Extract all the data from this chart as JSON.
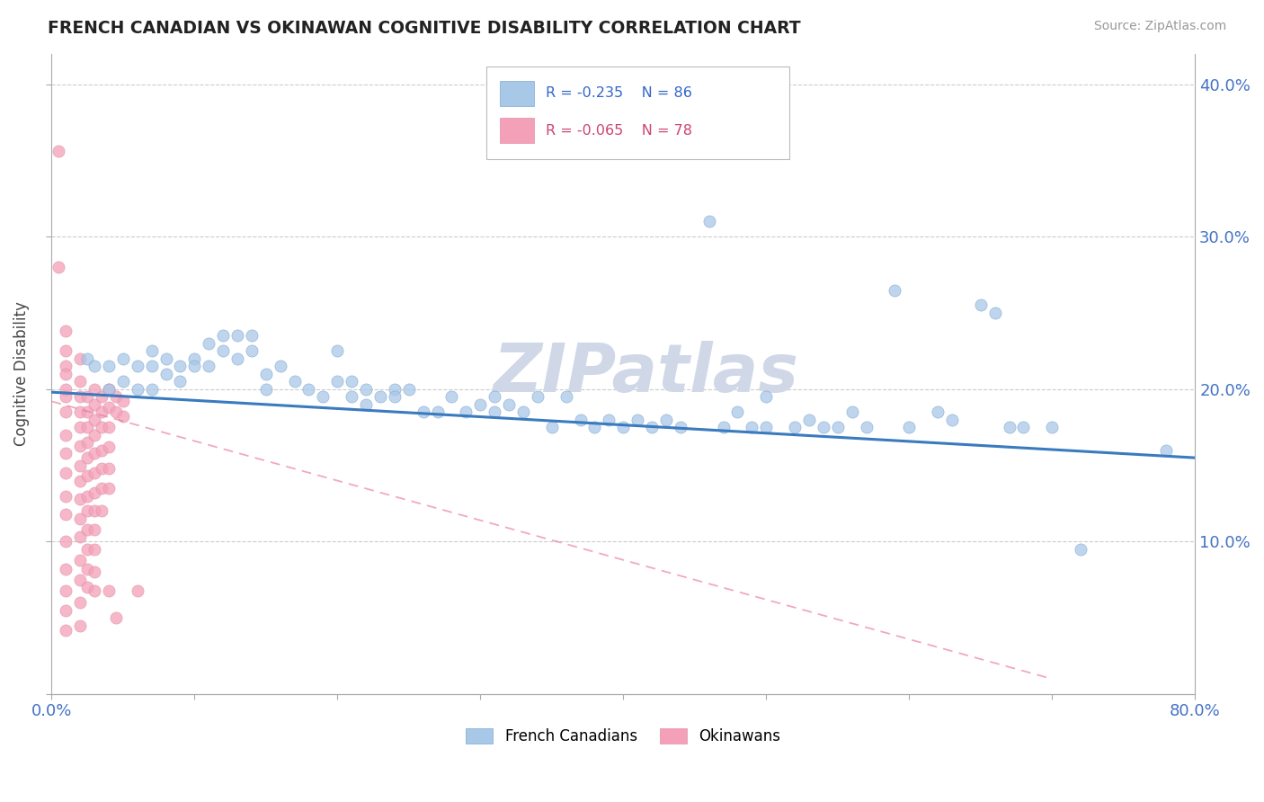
{
  "title": "FRENCH CANADIAN VS OKINAWAN COGNITIVE DISABILITY CORRELATION CHART",
  "source": "Source: ZipAtlas.com",
  "ylabel": "Cognitive Disability",
  "xlim": [
    0.0,
    0.8
  ],
  "ylim": [
    0.0,
    0.42
  ],
  "xtick_positions": [
    0.0,
    0.1,
    0.2,
    0.3,
    0.4,
    0.5,
    0.6,
    0.7,
    0.8
  ],
  "xticklabels": [
    "0.0%",
    "",
    "",
    "",
    "",
    "",
    "",
    "",
    "80.0%"
  ],
  "ytick_positions": [
    0.0,
    0.1,
    0.2,
    0.3,
    0.4
  ],
  "yticklabels_right": [
    "",
    "10.0%",
    "20.0%",
    "30.0%",
    "40.0%"
  ],
  "blue_color": "#a8c8e8",
  "pink_color": "#f4a0b8",
  "blue_line_color": "#3a7abf",
  "pink_line_color": "#e87090",
  "watermark_text": "ZIPatlas",
  "watermark_color": "#d0d8e8",
  "blue_line_x": [
    0.0,
    0.8
  ],
  "blue_line_y": [
    0.198,
    0.155
  ],
  "pink_line_x": [
    0.0,
    0.7
  ],
  "pink_line_y": [
    0.192,
    0.01
  ],
  "blue_scatter": [
    [
      0.025,
      0.22
    ],
    [
      0.03,
      0.215
    ],
    [
      0.04,
      0.2
    ],
    [
      0.04,
      0.215
    ],
    [
      0.05,
      0.22
    ],
    [
      0.05,
      0.205
    ],
    [
      0.06,
      0.215
    ],
    [
      0.06,
      0.2
    ],
    [
      0.07,
      0.225
    ],
    [
      0.07,
      0.215
    ],
    [
      0.07,
      0.2
    ],
    [
      0.08,
      0.22
    ],
    [
      0.08,
      0.21
    ],
    [
      0.09,
      0.215
    ],
    [
      0.09,
      0.205
    ],
    [
      0.1,
      0.22
    ],
    [
      0.1,
      0.215
    ],
    [
      0.11,
      0.23
    ],
    [
      0.11,
      0.215
    ],
    [
      0.12,
      0.235
    ],
    [
      0.12,
      0.225
    ],
    [
      0.13,
      0.235
    ],
    [
      0.13,
      0.22
    ],
    [
      0.14,
      0.235
    ],
    [
      0.14,
      0.225
    ],
    [
      0.15,
      0.21
    ],
    [
      0.15,
      0.2
    ],
    [
      0.16,
      0.215
    ],
    [
      0.17,
      0.205
    ],
    [
      0.18,
      0.2
    ],
    [
      0.19,
      0.195
    ],
    [
      0.2,
      0.225
    ],
    [
      0.2,
      0.205
    ],
    [
      0.21,
      0.205
    ],
    [
      0.21,
      0.195
    ],
    [
      0.22,
      0.2
    ],
    [
      0.22,
      0.19
    ],
    [
      0.23,
      0.195
    ],
    [
      0.24,
      0.2
    ],
    [
      0.24,
      0.195
    ],
    [
      0.25,
      0.2
    ],
    [
      0.26,
      0.185
    ],
    [
      0.27,
      0.185
    ],
    [
      0.28,
      0.195
    ],
    [
      0.29,
      0.185
    ],
    [
      0.3,
      0.19
    ],
    [
      0.31,
      0.185
    ],
    [
      0.31,
      0.195
    ],
    [
      0.32,
      0.19
    ],
    [
      0.33,
      0.185
    ],
    [
      0.34,
      0.195
    ],
    [
      0.35,
      0.175
    ],
    [
      0.36,
      0.195
    ],
    [
      0.37,
      0.18
    ],
    [
      0.38,
      0.175
    ],
    [
      0.39,
      0.18
    ],
    [
      0.4,
      0.175
    ],
    [
      0.41,
      0.18
    ],
    [
      0.42,
      0.175
    ],
    [
      0.43,
      0.18
    ],
    [
      0.44,
      0.175
    ],
    [
      0.46,
      0.31
    ],
    [
      0.47,
      0.175
    ],
    [
      0.48,
      0.185
    ],
    [
      0.49,
      0.175
    ],
    [
      0.5,
      0.195
    ],
    [
      0.5,
      0.175
    ],
    [
      0.52,
      0.175
    ],
    [
      0.53,
      0.18
    ],
    [
      0.54,
      0.175
    ],
    [
      0.55,
      0.175
    ],
    [
      0.56,
      0.185
    ],
    [
      0.57,
      0.175
    ],
    [
      0.59,
      0.265
    ],
    [
      0.6,
      0.175
    ],
    [
      0.62,
      0.185
    ],
    [
      0.63,
      0.18
    ],
    [
      0.65,
      0.255
    ],
    [
      0.66,
      0.25
    ],
    [
      0.67,
      0.175
    ],
    [
      0.68,
      0.175
    ],
    [
      0.7,
      0.175
    ],
    [
      0.72,
      0.095
    ],
    [
      0.78,
      0.16
    ]
  ],
  "pink_scatter": [
    [
      0.005,
      0.356
    ],
    [
      0.005,
      0.28
    ],
    [
      0.01,
      0.238
    ],
    [
      0.01,
      0.225
    ],
    [
      0.01,
      0.215
    ],
    [
      0.01,
      0.21
    ],
    [
      0.01,
      0.2
    ],
    [
      0.01,
      0.195
    ],
    [
      0.01,
      0.185
    ],
    [
      0.01,
      0.17
    ],
    [
      0.01,
      0.158
    ],
    [
      0.01,
      0.145
    ],
    [
      0.01,
      0.13
    ],
    [
      0.01,
      0.118
    ],
    [
      0.01,
      0.1
    ],
    [
      0.01,
      0.082
    ],
    [
      0.01,
      0.068
    ],
    [
      0.01,
      0.055
    ],
    [
      0.01,
      0.042
    ],
    [
      0.02,
      0.22
    ],
    [
      0.02,
      0.205
    ],
    [
      0.02,
      0.195
    ],
    [
      0.02,
      0.185
    ],
    [
      0.02,
      0.175
    ],
    [
      0.02,
      0.163
    ],
    [
      0.02,
      0.15
    ],
    [
      0.02,
      0.14
    ],
    [
      0.02,
      0.128
    ],
    [
      0.02,
      0.115
    ],
    [
      0.02,
      0.103
    ],
    [
      0.02,
      0.088
    ],
    [
      0.02,
      0.075
    ],
    [
      0.02,
      0.06
    ],
    [
      0.02,
      0.045
    ],
    [
      0.025,
      0.195
    ],
    [
      0.025,
      0.185
    ],
    [
      0.025,
      0.175
    ],
    [
      0.025,
      0.165
    ],
    [
      0.025,
      0.155
    ],
    [
      0.025,
      0.143
    ],
    [
      0.025,
      0.13
    ],
    [
      0.025,
      0.12
    ],
    [
      0.025,
      0.108
    ],
    [
      0.025,
      0.095
    ],
    [
      0.025,
      0.082
    ],
    [
      0.025,
      0.07
    ],
    [
      0.03,
      0.2
    ],
    [
      0.03,
      0.19
    ],
    [
      0.03,
      0.18
    ],
    [
      0.03,
      0.17
    ],
    [
      0.03,
      0.158
    ],
    [
      0.03,
      0.145
    ],
    [
      0.03,
      0.132
    ],
    [
      0.03,
      0.12
    ],
    [
      0.03,
      0.108
    ],
    [
      0.03,
      0.095
    ],
    [
      0.03,
      0.08
    ],
    [
      0.03,
      0.068
    ],
    [
      0.035,
      0.195
    ],
    [
      0.035,
      0.185
    ],
    [
      0.035,
      0.175
    ],
    [
      0.035,
      0.16
    ],
    [
      0.035,
      0.148
    ],
    [
      0.035,
      0.135
    ],
    [
      0.035,
      0.12
    ],
    [
      0.04,
      0.2
    ],
    [
      0.04,
      0.188
    ],
    [
      0.04,
      0.175
    ],
    [
      0.04,
      0.162
    ],
    [
      0.04,
      0.148
    ],
    [
      0.04,
      0.135
    ],
    [
      0.04,
      0.068
    ],
    [
      0.045,
      0.195
    ],
    [
      0.045,
      0.185
    ],
    [
      0.045,
      0.05
    ],
    [
      0.05,
      0.192
    ],
    [
      0.05,
      0.182
    ],
    [
      0.06,
      0.068
    ]
  ]
}
